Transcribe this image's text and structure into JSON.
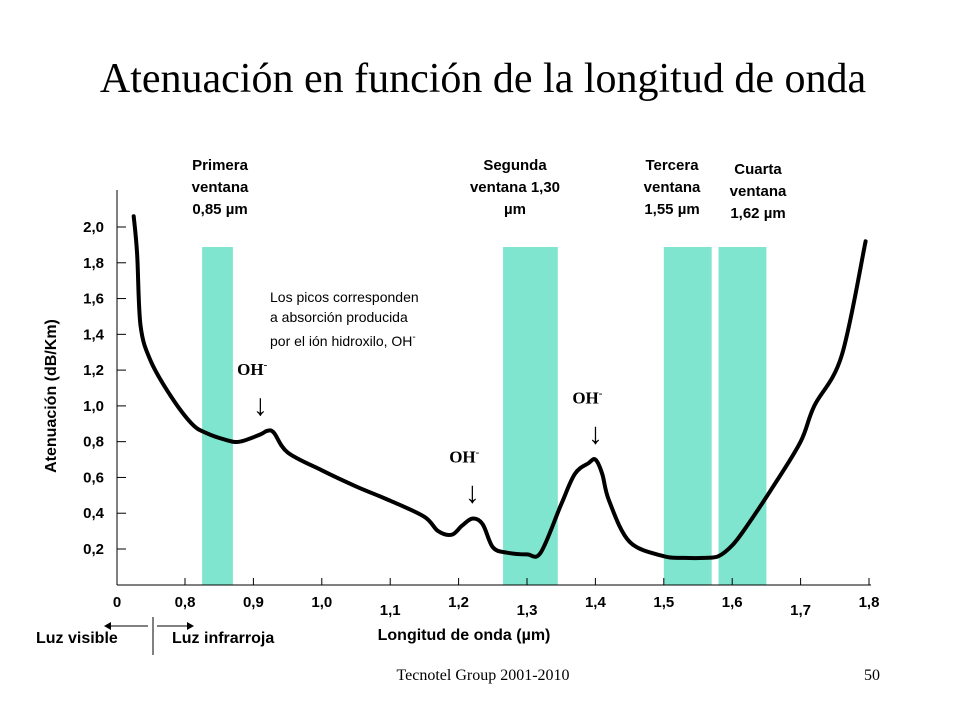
{
  "slide": {
    "title": "Atenuación en función de la longitud de onda",
    "footer": "Tecnotel Group 2001-2010",
    "page_number": "50"
  },
  "chart_data": {
    "type": "line",
    "xlabel": "Longitud de onda (µm)",
    "ylabel": "Atenuación (dB/Km)",
    "x_ticks": [
      "0",
      "0,8",
      "0,9",
      "1,0",
      "1,1",
      "1,2",
      "1,3",
      "1,4",
      "1,5",
      "1,6",
      "1,7",
      "1,8"
    ],
    "y_ticks": [
      "0,2",
      "0,4",
      "0,6",
      "0,8",
      "1,0",
      "1,2",
      "1,4",
      "1,6",
      "1,8",
      "2,0"
    ],
    "ylim": [
      0,
      2.2
    ],
    "xlim": [
      0.7,
      1.8
    ],
    "grid": false,
    "series": [
      {
        "color": "#000000",
        "x": [
          0.725,
          0.73,
          0.735,
          0.75,
          0.78,
          0.81,
          0.83,
          0.86,
          0.88,
          0.91,
          0.92,
          0.93,
          0.95,
          1.0,
          1.05,
          1.1,
          1.15,
          1.17,
          1.19,
          1.205,
          1.22,
          1.235,
          1.25,
          1.27,
          1.3,
          1.32,
          1.35,
          1.37,
          1.39,
          1.4,
          1.41,
          1.42,
          1.45,
          1.5,
          1.53,
          1.56,
          1.58,
          1.6,
          1.62,
          1.66,
          1.7,
          1.72,
          1.76,
          1.795
        ],
        "y": [
          2.06,
          1.85,
          1.45,
          1.25,
          1.05,
          0.9,
          0.85,
          0.81,
          0.8,
          0.84,
          0.86,
          0.85,
          0.74,
          0.64,
          0.55,
          0.47,
          0.38,
          0.3,
          0.28,
          0.33,
          0.37,
          0.34,
          0.21,
          0.18,
          0.17,
          0.18,
          0.45,
          0.62,
          0.68,
          0.7,
          0.62,
          0.47,
          0.24,
          0.16,
          0.15,
          0.15,
          0.16,
          0.22,
          0.32,
          0.55,
          0.8,
          1.0,
          1.28,
          1.92
        ]
      }
    ],
    "windows": [
      {
        "label": "Primera ventana 0,85 µm",
        "lines": [
          "Primera",
          "ventana",
          "0,85 µm"
        ],
        "x_from": 0.825,
        "x_to": 0.87,
        "color": "#7fe5cf"
      },
      {
        "label": "Segunda ventana 1,30 µm",
        "lines": [
          "Segunda",
          "ventana 1,30",
          "µm"
        ],
        "x_from": 1.265,
        "x_to": 1.345,
        "color": "#7fe5cf"
      },
      {
        "label": "Tercera ventana 1,55 µm",
        "lines": [
          "Tercera",
          "ventana",
          "1,55 µm"
        ],
        "x_from": 1.5,
        "x_to": 1.57,
        "color": "#7fe5cf"
      },
      {
        "label": "Cuarta ventana 1,62 µm",
        "lines": [
          "Cuarta",
          "ventana",
          "1,62 µm"
        ],
        "x_from": 1.58,
        "x_to": 1.65,
        "color": "#7fe5cf"
      }
    ],
    "peak_annotation": {
      "text": "Los picos corresponden a absorción producida por el ión hidroxilo, OH-",
      "lines": [
        "Los picos corresponden",
        "a absorción producida",
        "por el ión hidroxilo, OH"
      ],
      "superscript": "-"
    },
    "peak_labels": [
      {
        "text": "OH",
        "sup": "-",
        "x": 0.91,
        "y": 0.86
      },
      {
        "text": "OH",
        "sup": "-",
        "x": 1.22,
        "y": 0.37
      },
      {
        "text": "OH",
        "sup": "-",
        "x": 1.4,
        "y": 0.7
      }
    ],
    "arrow_glyph": "↓",
    "light_regions": {
      "visible": "Luz visible",
      "infrared": "Luz infrarroja"
    }
  }
}
